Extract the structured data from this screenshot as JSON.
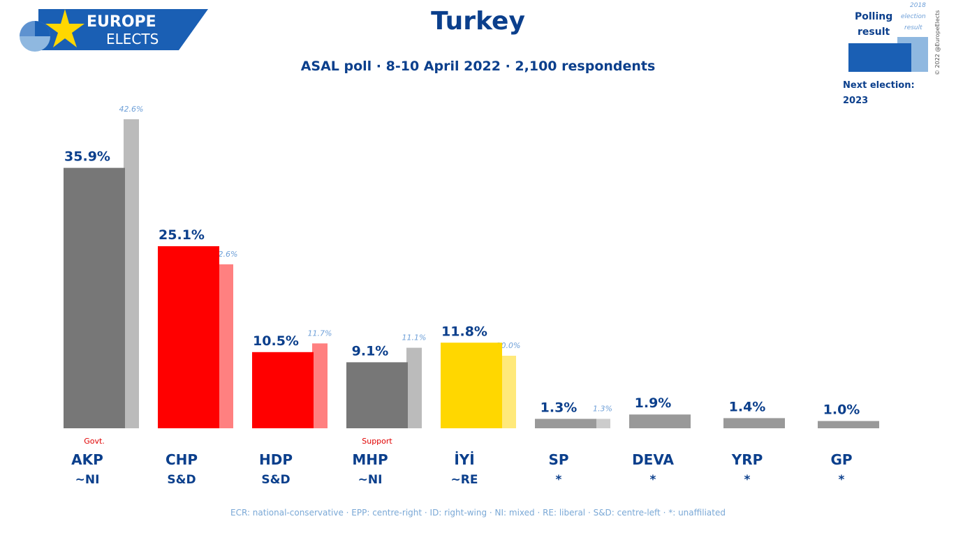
{
  "brand": {
    "line1": "EUROPE",
    "line2": "ELECTS"
  },
  "header": {
    "title": "Turkey",
    "subtitle": "ASAL poll · 8-10 April 2022 · 2,100 respondents"
  },
  "legend": {
    "polling_label_1": "Polling",
    "polling_label_2": "result",
    "election_label_1": "2018",
    "election_label_2": "election",
    "election_label_3": "result",
    "copyright": "© 2022 @EuropeElects",
    "next_election_label": "Next election:",
    "next_election_year": "2023",
    "colors": {
      "poll": "#1a5fb4",
      "election": "#8fb8e0"
    }
  },
  "chart_data": {
    "type": "bar",
    "title": "Turkey",
    "subtitle": "ASAL poll · 8-10 April 2022 · 2,100 respondents",
    "categories": [
      "AKP",
      "CHP",
      "HDP",
      "MHP",
      "İYİ",
      "SP",
      "DEVA",
      "YRP",
      "GP"
    ],
    "groups": [
      "~NI",
      "S&D",
      "S&D",
      "~NI",
      "~RE",
      "*",
      "*",
      "*",
      "*"
    ],
    "status": [
      "Govt.",
      "",
      "",
      "Support",
      "",
      "",
      "",
      "",
      ""
    ],
    "series": [
      {
        "name": "Polling result",
        "values": [
          35.9,
          25.1,
          10.5,
          9.1,
          11.8,
          1.3,
          1.9,
          1.4,
          1.0
        ],
        "labels": [
          "35.9%",
          "25.1%",
          "10.5%",
          "9.1%",
          "11.8%",
          "1.3%",
          "1.9%",
          "1.4%",
          "1.0%"
        ]
      },
      {
        "name": "2018 election result",
        "values": [
          42.6,
          22.6,
          11.7,
          11.1,
          10.0,
          1.3,
          null,
          null,
          null
        ],
        "labels": [
          "42.6%",
          "22.6%",
          "11.7%",
          "11.1%",
          "10.0%",
          "1.3%",
          "",
          "",
          ""
        ]
      }
    ],
    "colors": [
      "#777777",
      "#ff0000",
      "#ff0000",
      "#777777",
      "#ffd700",
      "#999999",
      "#999999",
      "#999999",
      "#999999"
    ],
    "prev_colors": [
      "#bbbbbb",
      "#ff8080",
      "#ff8080",
      "#bbbbbb",
      "#ffe97a",
      "#cccccc",
      "#cccccc",
      "#cccccc",
      "#cccccc"
    ],
    "ylim": [
      0,
      45
    ]
  },
  "footnote": "ECR: national-conservative · EPP: centre-right · ID: right-wing · NI: mixed · RE: liberal · S&D: centre-left · *: unaffiliated"
}
